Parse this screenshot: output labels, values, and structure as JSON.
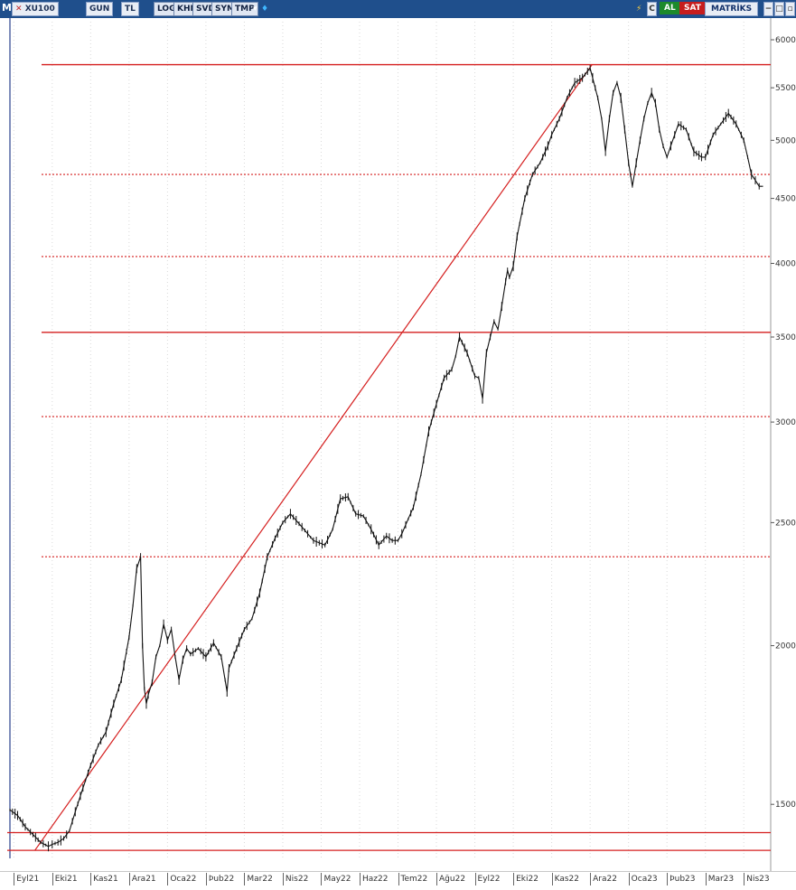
{
  "toolbar": {
    "app_letter": "M",
    "symbol": "XU100",
    "period": "GUN",
    "currency": "TL",
    "buttons": [
      "LOG",
      "KHN",
      "SVD",
      "SYM",
      "TMP"
    ],
    "buy_label": "AL",
    "sell_label": "SAT",
    "brand": "MATRİKS",
    "ctrl_small": "C"
  },
  "colors": {
    "toolbar": "#1f4f8c",
    "price": "#111111",
    "levels": "#d51f1f",
    "buy": "#1d8a2b",
    "sell": "#c61d1d"
  },
  "chart_data": {
    "type": "line",
    "scale": "log",
    "ylim": [
      1360,
      6200
    ],
    "yticks": [
      1500,
      2000,
      2500,
      3000,
      3500,
      4000,
      4500,
      5000,
      5500,
      6000
    ],
    "ytick_labels": [
      "1500.",
      "2000.",
      "2500.",
      "3000.",
      "3500.",
      "4000.",
      "4500.",
      "5000.",
      "5500.",
      "6000."
    ],
    "x_labels": [
      "Eyl21",
      "Eki21",
      "Kas21",
      "Ara21",
      "Oca22",
      "Þub22",
      "Mar22",
      "Nis22",
      "May22",
      "Haz22",
      "Tem22",
      "Ağu22",
      "Eyl22",
      "Eki22",
      "Kas22",
      "Ara22",
      "Oca23",
      "Þub23",
      "Mar23",
      "Nis23"
    ],
    "x_months": [
      0,
      1,
      2,
      3,
      4,
      5,
      6,
      7,
      8,
      9,
      10,
      11,
      12,
      13,
      14,
      15,
      16,
      17,
      18,
      19
    ],
    "x_range": [
      -0.1,
      19.7
    ],
    "series": [
      {
        "x": [
          -0.1,
          0.1,
          0.3,
          0.5,
          0.7,
          0.9,
          1.0,
          1.15,
          1.3,
          1.45,
          1.6,
          1.8,
          2.0,
          2.2,
          2.4,
          2.6,
          2.8,
          3.0,
          3.1,
          3.2,
          3.3,
          3.35,
          3.4,
          3.45,
          3.5,
          3.6,
          3.7,
          3.8,
          3.9,
          4.0,
          4.1,
          4.2,
          4.3,
          4.4,
          4.5,
          4.6,
          4.8,
          5.0,
          5.2,
          5.4,
          5.5,
          5.55,
          5.6,
          5.8,
          6.0,
          6.2,
          6.4,
          6.6,
          6.8,
          7.0,
          7.2,
          7.5,
          7.8,
          8.1,
          8.3,
          8.5,
          8.7,
          8.9,
          9.1,
          9.3,
          9.5,
          9.7,
          9.85,
          10.0,
          10.1,
          10.2,
          10.4,
          10.6,
          10.8,
          11.0,
          11.2,
          11.4,
          11.5,
          11.6,
          11.8,
          12.0,
          12.1,
          12.2,
          12.3,
          12.4,
          12.5,
          12.6,
          12.7,
          12.8,
          12.85,
          12.9,
          13.0,
          13.1,
          13.3,
          13.5,
          13.7,
          13.9,
          14.0,
          14.2,
          14.4,
          14.6,
          14.8,
          15.0,
          15.2,
          15.3,
          15.4,
          15.5,
          15.6,
          15.7,
          15.8,
          15.9,
          16.0,
          16.05,
          16.1,
          16.2,
          16.3,
          16.4,
          16.5,
          16.6,
          16.7,
          16.8,
          16.9,
          17.0,
          17.1,
          17.2,
          17.3,
          17.5,
          17.7,
          17.9,
          18.0,
          18.2,
          18.4,
          18.6,
          18.8,
          19.0,
          19.1,
          19.2,
          19.3,
          19.4,
          19.5
        ],
        "y": [
          1485,
          1470,
          1440,
          1420,
          1400,
          1390,
          1395,
          1400,
          1410,
          1430,
          1480,
          1545,
          1610,
          1670,
          1710,
          1800,
          1880,
          2030,
          2150,
          2300,
          2350,
          2000,
          1850,
          1800,
          1830,
          1870,
          1960,
          2000,
          2080,
          2020,
          2060,
          1960,
          1880,
          1950,
          1990,
          1970,
          1990,
          1960,
          2010,
          1960,
          1880,
          1840,
          1920,
          1990,
          2060,
          2100,
          2200,
          2350,
          2430,
          2500,
          2540,
          2480,
          2420,
          2400,
          2470,
          2610,
          2620,
          2540,
          2530,
          2470,
          2400,
          2440,
          2420,
          2420,
          2450,
          2490,
          2570,
          2730,
          2950,
          3100,
          3250,
          3300,
          3380,
          3500,
          3400,
          3260,
          3250,
          3130,
          3400,
          3500,
          3600,
          3550,
          3700,
          3870,
          3950,
          3900,
          3980,
          4200,
          4500,
          4700,
          4800,
          4950,
          5050,
          5200,
          5400,
          5550,
          5600,
          5700,
          5400,
          5200,
          4900,
          5200,
          5450,
          5550,
          5400,
          5100,
          4800,
          4700,
          4600,
          4800,
          5000,
          5200,
          5350,
          5450,
          5350,
          5100,
          4950,
          4850,
          4950,
          5050,
          5150,
          5100,
          4900,
          4850,
          4850,
          5050,
          5150,
          5250,
          5150,
          5000,
          4850,
          4700,
          4650,
          4600,
          4600
        ]
      }
    ],
    "hlines": [
      {
        "y": 5735,
        "style": "solid"
      },
      {
        "y": 4700,
        "style": "dotted"
      },
      {
        "y": 4050,
        "style": "dotted"
      },
      {
        "y": 3530,
        "style": "solid"
      },
      {
        "y": 3030,
        "style": "dotted"
      },
      {
        "y": 2350,
        "style": "dotted"
      },
      {
        "y": 1425,
        "style": "solid"
      },
      {
        "y": 1380,
        "style": "solid"
      }
    ],
    "trendlines": [
      {
        "x1": 0.55,
        "y1": 1380,
        "x2": 15.05,
        "y2": 5735
      }
    ],
    "grid": "vertical-dotted"
  }
}
